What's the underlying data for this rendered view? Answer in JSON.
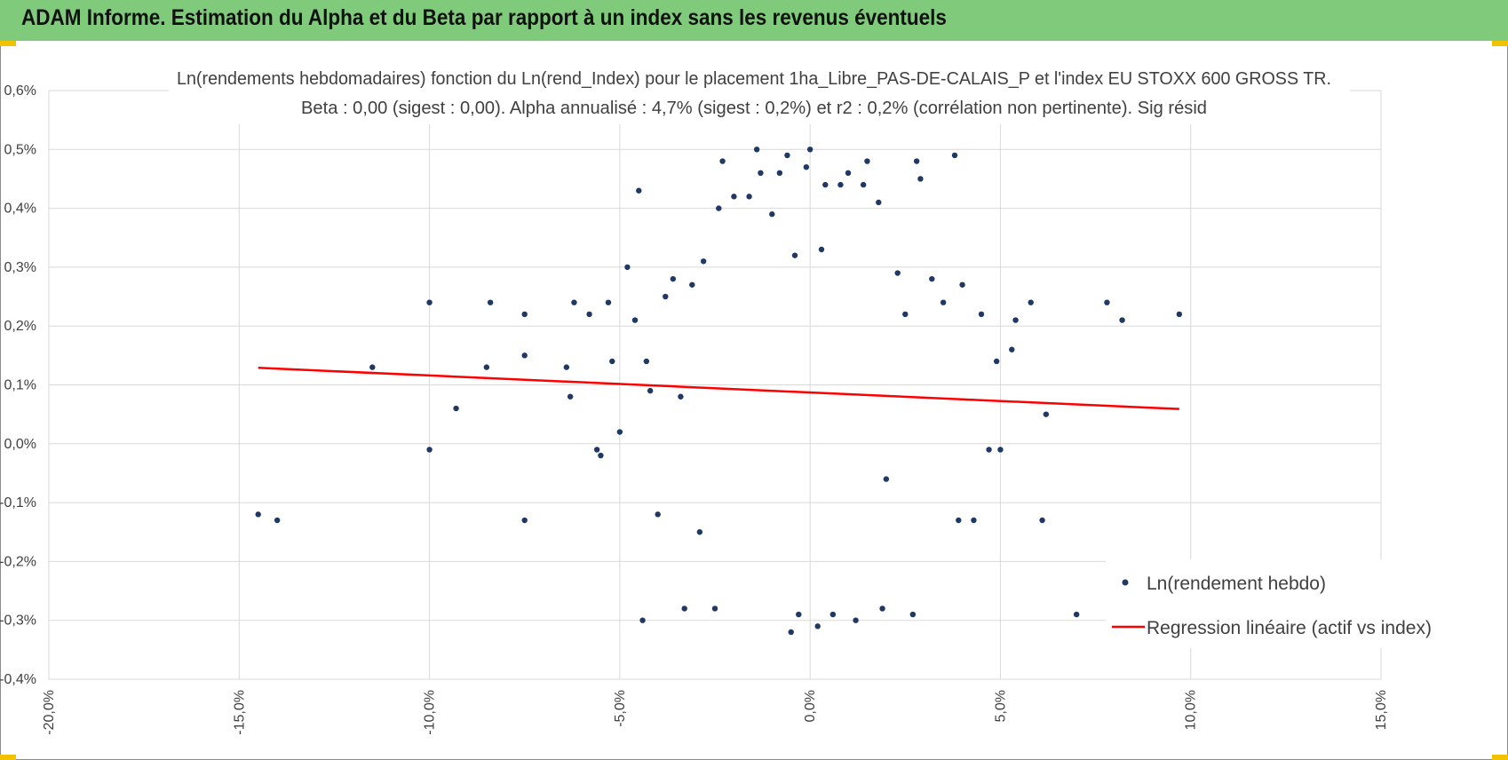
{
  "header": {
    "title": "ADAM Informe. Estimation du Alpha et du Beta par rapport à un index sans les revenus éventuels"
  },
  "colors": {
    "header_bg": "#7fca7b",
    "accent": "#f2c200",
    "points": "#203864",
    "regression": "#ff0000"
  },
  "chart_data": {
    "type": "scatter",
    "title": "Ln(rendements hebdomadaires) fonction du Ln(rend_Index) pour le placement 1ha_Libre_PAS-DE-CALAIS_P et l'index EU STOXX 600 GROSS TR.",
    "subtitle": "Beta : 0,00 (sigest : 0,00). Alpha annualisé : 4,7% (sigest : 0,2%) et r2 : 0,2% (corrélation non pertinente). Sig résid",
    "xlim": [
      -20,
      15
    ],
    "ylim": [
      -0.4,
      0.6
    ],
    "x_ticks": [
      "-20,0%",
      "-15,0%",
      "-10,0%",
      "-5,0%",
      "0,0%",
      "5,0%",
      "10,0%",
      "15,0%"
    ],
    "y_ticks": [
      "-0,4%",
      "-0,3%",
      "-0,2%",
      "-0,1%",
      "0,0%",
      "0,1%",
      "0,2%",
      "0,3%",
      "0,4%",
      "0,5%",
      "0,6%"
    ],
    "grid": true,
    "legend_position": "bottom-right",
    "series": [
      {
        "name": "Ln(rendement hebdo)",
        "kind": "scatter",
        "color": "#203864",
        "points": [
          [
            -14.5,
            -0.12
          ],
          [
            -14.0,
            -0.13
          ],
          [
            -11.5,
            0.13
          ],
          [
            -10.0,
            0.24
          ],
          [
            -10.0,
            -0.01
          ],
          [
            -9.3,
            0.06
          ],
          [
            -8.4,
            0.24
          ],
          [
            -8.5,
            0.13
          ],
          [
            -7.5,
            -0.13
          ],
          [
            -7.5,
            0.22
          ],
          [
            -7.5,
            0.15
          ],
          [
            -6.4,
            0.13
          ],
          [
            -6.3,
            0.08
          ],
          [
            -6.2,
            0.24
          ],
          [
            -5.8,
            0.22
          ],
          [
            -5.6,
            -0.01
          ],
          [
            -5.5,
            -0.02
          ],
          [
            -5.3,
            0.24
          ],
          [
            -5.2,
            0.14
          ],
          [
            -5.0,
            0.02
          ],
          [
            -4.8,
            0.3
          ],
          [
            -4.6,
            0.21
          ],
          [
            -4.5,
            0.43
          ],
          [
            -4.4,
            -0.3
          ],
          [
            -4.3,
            0.14
          ],
          [
            -4.2,
            0.09
          ],
          [
            -4.0,
            -0.12
          ],
          [
            -3.8,
            0.25
          ],
          [
            -3.6,
            0.28
          ],
          [
            -3.4,
            0.08
          ],
          [
            -3.3,
            -0.28
          ],
          [
            -3.1,
            0.27
          ],
          [
            -2.9,
            -0.15
          ],
          [
            -2.8,
            0.31
          ],
          [
            -2.5,
            -0.28
          ],
          [
            -2.4,
            0.4
          ],
          [
            -2.3,
            0.48
          ],
          [
            -2.0,
            0.42
          ],
          [
            -1.6,
            0.42
          ],
          [
            -1.4,
            0.5
          ],
          [
            -1.3,
            0.46
          ],
          [
            -1.0,
            0.39
          ],
          [
            -0.8,
            0.46
          ],
          [
            -0.6,
            0.49
          ],
          [
            -0.4,
            0.32
          ],
          [
            -0.5,
            -0.32
          ],
          [
            -0.3,
            -0.29
          ],
          [
            -0.1,
            0.47
          ],
          [
            0.0,
            0.5
          ],
          [
            0.2,
            -0.31
          ],
          [
            0.3,
            0.33
          ],
          [
            0.4,
            0.44
          ],
          [
            0.6,
            -0.29
          ],
          [
            0.8,
            0.44
          ],
          [
            1.0,
            0.46
          ],
          [
            1.2,
            -0.3
          ],
          [
            1.4,
            0.44
          ],
          [
            1.5,
            0.48
          ],
          [
            1.8,
            0.41
          ],
          [
            1.9,
            -0.28
          ],
          [
            2.0,
            -0.06
          ],
          [
            2.3,
            0.29
          ],
          [
            2.5,
            0.22
          ],
          [
            2.7,
            -0.29
          ],
          [
            2.8,
            0.48
          ],
          [
            2.9,
            0.45
          ],
          [
            3.2,
            0.28
          ],
          [
            3.5,
            0.24
          ],
          [
            3.8,
            0.49
          ],
          [
            3.9,
            -0.13
          ],
          [
            4.0,
            0.27
          ],
          [
            4.3,
            -0.13
          ],
          [
            4.5,
            0.22
          ],
          [
            4.7,
            -0.01
          ],
          [
            4.9,
            0.14
          ],
          [
            5.0,
            -0.01
          ],
          [
            5.3,
            0.16
          ],
          [
            5.4,
            0.21
          ],
          [
            5.8,
            0.24
          ],
          [
            6.1,
            -0.13
          ],
          [
            6.2,
            0.05
          ],
          [
            7.0,
            -0.29
          ],
          [
            7.8,
            0.24
          ],
          [
            8.2,
            0.21
          ],
          [
            9.7,
            0.22
          ]
        ]
      },
      {
        "name": "Regression linéaire (actif vs index)",
        "kind": "line",
        "color": "#ff0000",
        "x": [
          -14.5,
          9.7
        ],
        "y": [
          0.129,
          0.059
        ]
      }
    ]
  }
}
